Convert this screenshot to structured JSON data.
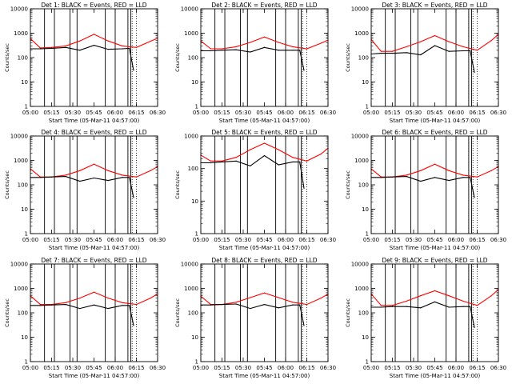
{
  "figure": {
    "background": "#ffffff",
    "colors": {
      "events": "#000000",
      "lld": "#ff0000",
      "axes": "#000000"
    }
  },
  "chart_data": [
    {
      "type": "line",
      "title": "Det 1: BLACK = Events, RED = LLD",
      "ylabel": "Counts/sec",
      "xlabel": "Start Time (05-Mar-11 04:57:00)",
      "yscale": "log",
      "ylim": [
        1,
        10000
      ],
      "yticks": [
        "1",
        "10",
        "100",
        "1000",
        "10000"
      ],
      "xlim": [
        "05:00",
        "06:30"
      ],
      "xticks": [
        "05:00",
        "05:15",
        "05:30",
        "05:45",
        "06:00",
        "06:15",
        "06:30"
      ],
      "grid": false,
      "series": [
        {
          "name": "Events",
          "color": "#000000",
          "x": [
            "05:00",
            "05:07",
            "05:15",
            "05:25",
            "05:35",
            "05:45",
            "05:55",
            "06:05",
            "06:10",
            "06:13"
          ],
          "y": [
            230,
            230,
            240,
            260,
            200,
            320,
            220,
            230,
            240,
            30
          ]
        },
        {
          "name": "LLD",
          "color": "#ff0000",
          "x": [
            "05:00",
            "05:07",
            "05:15",
            "05:25",
            "05:35",
            "05:45",
            "05:55",
            "06:05",
            "06:15",
            "06:25",
            "06:30"
          ],
          "y": [
            600,
            250,
            260,
            300,
            480,
            900,
            480,
            300,
            260,
            470,
            620
          ]
        }
      ],
      "vlines_solid": [
        "05:10",
        "05:17",
        "05:28",
        "05:33",
        "05:53",
        "06:00",
        "06:09",
        "06:11"
      ],
      "vlines_dotted": [
        "06:12",
        "06:15"
      ]
    },
    {
      "type": "line",
      "title": "Det 2: BLACK = Events, RED = LLD",
      "ylabel": "Counts/sec",
      "xlabel": "Start Time (05-Mar-11 04:57:00)",
      "yscale": "log",
      "ylim": [
        1,
        10000
      ],
      "yticks": [
        "1",
        "10",
        "100",
        "1000",
        "10000"
      ],
      "xlim": [
        "05:00",
        "06:30"
      ],
      "xticks": [
        "05:00",
        "05:15",
        "05:30",
        "05:45",
        "06:00",
        "06:15",
        "06:30"
      ],
      "grid": false,
      "series": [
        {
          "name": "Events",
          "color": "#000000",
          "x": [
            "05:00",
            "05:07",
            "05:15",
            "05:25",
            "05:35",
            "05:45",
            "05:55",
            "06:05",
            "06:10",
            "06:13"
          ],
          "y": [
            190,
            190,
            200,
            210,
            170,
            260,
            200,
            200,
            200,
            30
          ]
        },
        {
          "name": "LLD",
          "color": "#ff0000",
          "x": [
            "05:00",
            "05:07",
            "05:15",
            "05:25",
            "05:35",
            "05:45",
            "05:55",
            "06:05",
            "06:15",
            "06:25",
            "06:30"
          ],
          "y": [
            480,
            230,
            230,
            280,
            420,
            700,
            420,
            280,
            230,
            390,
            520
          ]
        }
      ],
      "vlines_solid": [
        "05:10",
        "05:17",
        "05:28",
        "05:33",
        "05:53",
        "06:00",
        "06:09",
        "06:11"
      ],
      "vlines_dotted": [
        "06:12",
        "06:15"
      ]
    },
    {
      "type": "line",
      "title": "Det 3: BLACK = Events, RED = LLD",
      "ylabel": "Counts/sec",
      "xlabel": "Start Time (05-Mar-11 04:57:00)",
      "yscale": "log",
      "ylim": [
        1,
        10000
      ],
      "yticks": [
        "1",
        "10",
        "100",
        "1000",
        "10000"
      ],
      "xlim": [
        "05:00",
        "06:30"
      ],
      "xticks": [
        "05:00",
        "05:15",
        "05:30",
        "05:45",
        "06:00",
        "06:15",
        "06:30"
      ],
      "grid": false,
      "series": [
        {
          "name": "Events",
          "color": "#000000",
          "x": [
            "05:00",
            "05:07",
            "05:15",
            "05:25",
            "05:35",
            "05:45",
            "05:55",
            "06:05",
            "06:10",
            "06:13"
          ],
          "y": [
            140,
            150,
            150,
            160,
            130,
            310,
            180,
            190,
            190,
            25
          ]
        },
        {
          "name": "LLD",
          "color": "#ff0000",
          "x": [
            "05:00",
            "05:07",
            "05:15",
            "05:25",
            "05:35",
            "05:45",
            "05:55",
            "06:05",
            "06:15",
            "06:25",
            "06:30"
          ],
          "y": [
            550,
            180,
            180,
            280,
            450,
            800,
            450,
            280,
            200,
            500,
            900
          ]
        }
      ],
      "vlines_solid": [
        "05:10",
        "05:17",
        "05:28",
        "05:33",
        "05:53",
        "06:00",
        "06:09",
        "06:11"
      ],
      "vlines_dotted": [
        "06:12",
        "06:15"
      ]
    },
    {
      "type": "line",
      "title": "Det 4: BLACK = Events, RED = LLD",
      "ylabel": "Counts/sec",
      "xlabel": "Start Time (05-Mar-11 04:57:00)",
      "yscale": "log",
      "ylim": [
        1,
        10000
      ],
      "yticks": [
        "1",
        "10",
        "100",
        "1000",
        "10000"
      ],
      "xlim": [
        "05:00",
        "06:30"
      ],
      "xticks": [
        "05:00",
        "05:15",
        "05:30",
        "05:45",
        "06:00",
        "06:15",
        "06:30"
      ],
      "grid": false,
      "series": [
        {
          "name": "Events",
          "color": "#000000",
          "x": [
            "05:00",
            "05:07",
            "05:15",
            "05:25",
            "05:35",
            "05:45",
            "05:55",
            "06:05",
            "06:10",
            "06:13"
          ],
          "y": [
            200,
            200,
            210,
            220,
            140,
            190,
            150,
            200,
            200,
            30
          ]
        },
        {
          "name": "LLD",
          "color": "#ff0000",
          "x": [
            "05:00",
            "05:07",
            "05:15",
            "05:25",
            "05:35",
            "05:45",
            "05:55",
            "06:05",
            "06:15",
            "06:25",
            "06:30"
          ],
          "y": [
            450,
            210,
            210,
            250,
            380,
            700,
            380,
            250,
            210,
            380,
            560
          ]
        }
      ],
      "vlines_solid": [
        "05:10",
        "05:17",
        "05:28",
        "05:33",
        "05:53",
        "06:00",
        "06:09",
        "06:11"
      ],
      "vlines_dotted": [
        "06:12",
        "06:15"
      ]
    },
    {
      "type": "line",
      "title": "Det 5: BLACK = Events, RED = LLD",
      "ylabel": "Counts/sec",
      "xlabel": "Start Time (05-Mar-11 04:57:00)",
      "yscale": "log",
      "ylim": [
        1,
        1000
      ],
      "yticks": [
        "1",
        "10",
        "100",
        "1000"
      ],
      "xlim": [
        "05:00",
        "06:30"
      ],
      "xticks": [
        "05:00",
        "05:15",
        "05:30",
        "05:45",
        "06:00",
        "06:15",
        "06:30"
      ],
      "grid": false,
      "series": [
        {
          "name": "Events",
          "color": "#000000",
          "x": [
            "05:00",
            "05:07",
            "05:15",
            "05:25",
            "05:35",
            "05:45",
            "05:55",
            "06:05",
            "06:10",
            "06:13"
          ],
          "y": [
            150,
            150,
            160,
            170,
            120,
            250,
            130,
            160,
            160,
            25
          ]
        },
        {
          "name": "LLD",
          "color": "#ff0000",
          "x": [
            "05:00",
            "05:07",
            "05:15",
            "05:25",
            "05:35",
            "05:45",
            "05:55",
            "06:05",
            "06:15",
            "06:25",
            "06:30"
          ],
          "y": [
            260,
            170,
            170,
            220,
            380,
            600,
            380,
            220,
            170,
            280,
            420
          ]
        }
      ],
      "vlines_solid": [
        "05:10",
        "05:17",
        "05:28",
        "05:33",
        "05:53",
        "06:00",
        "06:09",
        "06:11"
      ],
      "vlines_dotted": [
        "06:12",
        "06:15"
      ]
    },
    {
      "type": "line",
      "title": "Det 6: BLACK = Events, RED = LLD",
      "ylabel": "Counts/sec",
      "xlabel": "Start Time (05-Mar-11 04:57:00)",
      "yscale": "log",
      "ylim": [
        1,
        10000
      ],
      "yticks": [
        "1",
        "10",
        "100",
        "1000",
        "10000"
      ],
      "xlim": [
        "05:00",
        "06:30"
      ],
      "xticks": [
        "05:00",
        "05:15",
        "05:30",
        "05:45",
        "06:00",
        "06:15",
        "06:30"
      ],
      "grid": false,
      "series": [
        {
          "name": "Events",
          "color": "#000000",
          "x": [
            "05:00",
            "05:07",
            "05:15",
            "05:25",
            "05:35",
            "05:45",
            "05:55",
            "06:05",
            "06:10",
            "06:13"
          ],
          "y": [
            200,
            200,
            210,
            220,
            140,
            200,
            150,
            200,
            200,
            30
          ]
        },
        {
          "name": "LLD",
          "color": "#ff0000",
          "x": [
            "05:00",
            "05:07",
            "05:15",
            "05:25",
            "05:35",
            "05:45",
            "05:55",
            "06:05",
            "06:15",
            "06:25",
            "06:30"
          ],
          "y": [
            450,
            210,
            210,
            250,
            380,
            700,
            380,
            250,
            210,
            380,
            560
          ]
        }
      ],
      "vlines_solid": [
        "05:10",
        "05:17",
        "05:28",
        "05:33",
        "05:53",
        "06:00",
        "06:09",
        "06:11"
      ],
      "vlines_dotted": [
        "06:12",
        "06:15"
      ]
    },
    {
      "type": "line",
      "title": "Det 7: BLACK = Events, RED = LLD",
      "ylabel": "Counts/sec",
      "xlabel": "Start Time (05-Mar-11 04:57:00)",
      "yscale": "log",
      "ylim": [
        1,
        10000
      ],
      "yticks": [
        "1",
        "10",
        "100",
        "1000",
        "10000"
      ],
      "xlim": [
        "05:00",
        "06:30"
      ],
      "xticks": [
        "05:00",
        "05:15",
        "05:30",
        "05:45",
        "06:00",
        "06:15",
        "06:30"
      ],
      "grid": false,
      "series": [
        {
          "name": "Events",
          "color": "#000000",
          "x": [
            "05:00",
            "05:07",
            "05:15",
            "05:25",
            "05:35",
            "05:45",
            "05:55",
            "06:05",
            "06:10",
            "06:13"
          ],
          "y": [
            200,
            200,
            210,
            220,
            150,
            210,
            150,
            200,
            200,
            30
          ]
        },
        {
          "name": "LLD",
          "color": "#ff0000",
          "x": [
            "05:00",
            "05:07",
            "05:15",
            "05:25",
            "05:35",
            "05:45",
            "05:55",
            "06:05",
            "06:15",
            "06:25",
            "06:30"
          ],
          "y": [
            500,
            220,
            220,
            260,
            400,
            700,
            400,
            260,
            220,
            400,
            600
          ]
        }
      ],
      "vlines_solid": [
        "05:10",
        "05:17",
        "05:28",
        "05:33",
        "05:53",
        "06:00",
        "06:09",
        "06:11"
      ],
      "vlines_dotted": [
        "06:12",
        "06:15"
      ]
    },
    {
      "type": "line",
      "title": "Det 8: BLACK = Events, RED = LLD",
      "ylabel": "Counts/sec",
      "xlabel": "Start Time (05-Mar-11 04:57:00)",
      "yscale": "log",
      "ylim": [
        1,
        10000
      ],
      "yticks": [
        "1",
        "10",
        "100",
        "1000",
        "10000"
      ],
      "xlim": [
        "05:00",
        "06:30"
      ],
      "xticks": [
        "05:00",
        "05:15",
        "05:30",
        "05:45",
        "06:00",
        "06:15",
        "06:30"
      ],
      "grid": false,
      "series": [
        {
          "name": "Events",
          "color": "#000000",
          "x": [
            "05:00",
            "05:07",
            "05:15",
            "05:25",
            "05:35",
            "05:45",
            "05:55",
            "06:05",
            "06:10",
            "06:13"
          ],
          "y": [
            210,
            210,
            220,
            230,
            150,
            220,
            160,
            210,
            210,
            30
          ]
        },
        {
          "name": "LLD",
          "color": "#ff0000",
          "x": [
            "05:00",
            "05:07",
            "05:15",
            "05:25",
            "05:35",
            "05:45",
            "05:55",
            "06:05",
            "06:15",
            "06:25",
            "06:30"
          ],
          "y": [
            480,
            220,
            220,
            270,
            420,
            650,
            420,
            270,
            220,
            400,
            580
          ]
        }
      ],
      "vlines_solid": [
        "05:10",
        "05:17",
        "05:28",
        "05:33",
        "05:53",
        "06:00",
        "06:09",
        "06:11"
      ],
      "vlines_dotted": [
        "06:12",
        "06:15"
      ]
    },
    {
      "type": "line",
      "title": "Det 9: BLACK = Events, RED = LLD",
      "ylabel": "Counts/sec",
      "xlabel": "Start Time (05-Mar-11 04:57:00)",
      "yscale": "log",
      "ylim": [
        1,
        10000
      ],
      "yticks": [
        "1",
        "10",
        "100",
        "1000",
        "10000"
      ],
      "xlim": [
        "05:00",
        "06:30"
      ],
      "xticks": [
        "05:00",
        "05:15",
        "05:30",
        "05:45",
        "06:00",
        "06:15",
        "06:30"
      ],
      "grid": false,
      "series": [
        {
          "name": "Events",
          "color": "#000000",
          "x": [
            "05:00",
            "05:07",
            "05:15",
            "05:25",
            "05:35",
            "05:45",
            "05:55",
            "06:05",
            "06:10",
            "06:13"
          ],
          "y": [
            170,
            170,
            180,
            180,
            160,
            280,
            170,
            180,
            180,
            25
          ]
        },
        {
          "name": "LLD",
          "color": "#ff0000",
          "x": [
            "05:00",
            "05:07",
            "05:15",
            "05:25",
            "05:35",
            "05:45",
            "05:55",
            "06:05",
            "06:15",
            "06:25",
            "06:30"
          ],
          "y": [
            600,
            200,
            200,
            300,
            500,
            800,
            500,
            300,
            200,
            500,
            900
          ]
        }
      ],
      "vlines_solid": [
        "05:10",
        "05:17",
        "05:28",
        "05:33",
        "05:53",
        "06:00",
        "06:09",
        "06:11"
      ],
      "vlines_dotted": [
        "06:12",
        "06:15"
      ]
    }
  ]
}
